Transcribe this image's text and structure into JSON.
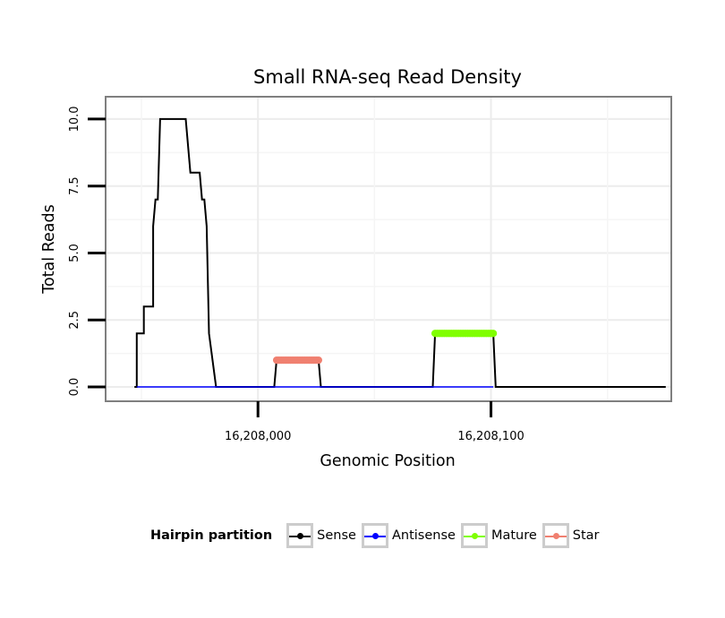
{
  "chart_data": {
    "type": "line",
    "title": "Small RNA-seq Read Density",
    "xlabel": "Genomic Position",
    "ylabel": "Total Reads",
    "xlim": [
      16207935,
      16208177
    ],
    "ylim": [
      -0.5,
      10.8
    ],
    "x_ticks": [
      16208000,
      16208100
    ],
    "x_tick_labels": [
      "16,208,000",
      "16,208,100"
    ],
    "y_ticks": [
      0,
      2.5,
      5,
      7.5,
      10
    ],
    "y_tick_labels": [
      "0.0",
      "2.5",
      "5.0",
      "7.5",
      "10.0"
    ],
    "grid": true,
    "legend_position": "bottom",
    "series": [
      {
        "name": "Sense",
        "color": "#000000",
        "points": [
          [
            16207947,
            0
          ],
          [
            16207948,
            0
          ],
          [
            16207948,
            2
          ],
          [
            16207951,
            2
          ],
          [
            16207951,
            3
          ],
          [
            16207955,
            3
          ],
          [
            16207955,
            6
          ],
          [
            16207956,
            7
          ],
          [
            16207957,
            7
          ],
          [
            16207958,
            10
          ],
          [
            16207969,
            10
          ],
          [
            16207970,
            9
          ],
          [
            16207971,
            8
          ],
          [
            16207975,
            8
          ],
          [
            16207976,
            7
          ],
          [
            16207977,
            7
          ],
          [
            16207978,
            6
          ],
          [
            16207979,
            2
          ],
          [
            16207982,
            0
          ],
          [
            16208007,
            0
          ],
          [
            16208008,
            1
          ],
          [
            16208026,
            1
          ],
          [
            16208027,
            0
          ],
          [
            16208075,
            0
          ],
          [
            16208076,
            2
          ],
          [
            16208101,
            2
          ],
          [
            16208102,
            0
          ],
          [
            16208175,
            0
          ]
        ]
      },
      {
        "name": "Antisense",
        "color": "#0000ff",
        "points": [
          [
            16207948,
            0
          ],
          [
            16207982,
            0
          ],
          [
            16208008,
            0
          ],
          [
            16208027,
            0
          ],
          [
            16208076,
            0
          ],
          [
            16208101,
            0
          ]
        ]
      },
      {
        "name": "Mature",
        "color": "#80ff00",
        "points": [
          [
            16208076,
            2
          ],
          [
            16208101,
            2
          ]
        ]
      },
      {
        "name": "Star",
        "color": "#f08070",
        "points": [
          [
            16208008,
            1
          ],
          [
            16208026,
            1
          ]
        ]
      }
    ]
  },
  "legend": {
    "title": "Hairpin partition",
    "items": [
      {
        "label": "Sense",
        "color": "#000000"
      },
      {
        "label": "Antisense",
        "color": "#0000ff"
      },
      {
        "label": "Mature",
        "color": "#80ff00"
      },
      {
        "label": "Star",
        "color": "#f08070"
      }
    ]
  }
}
